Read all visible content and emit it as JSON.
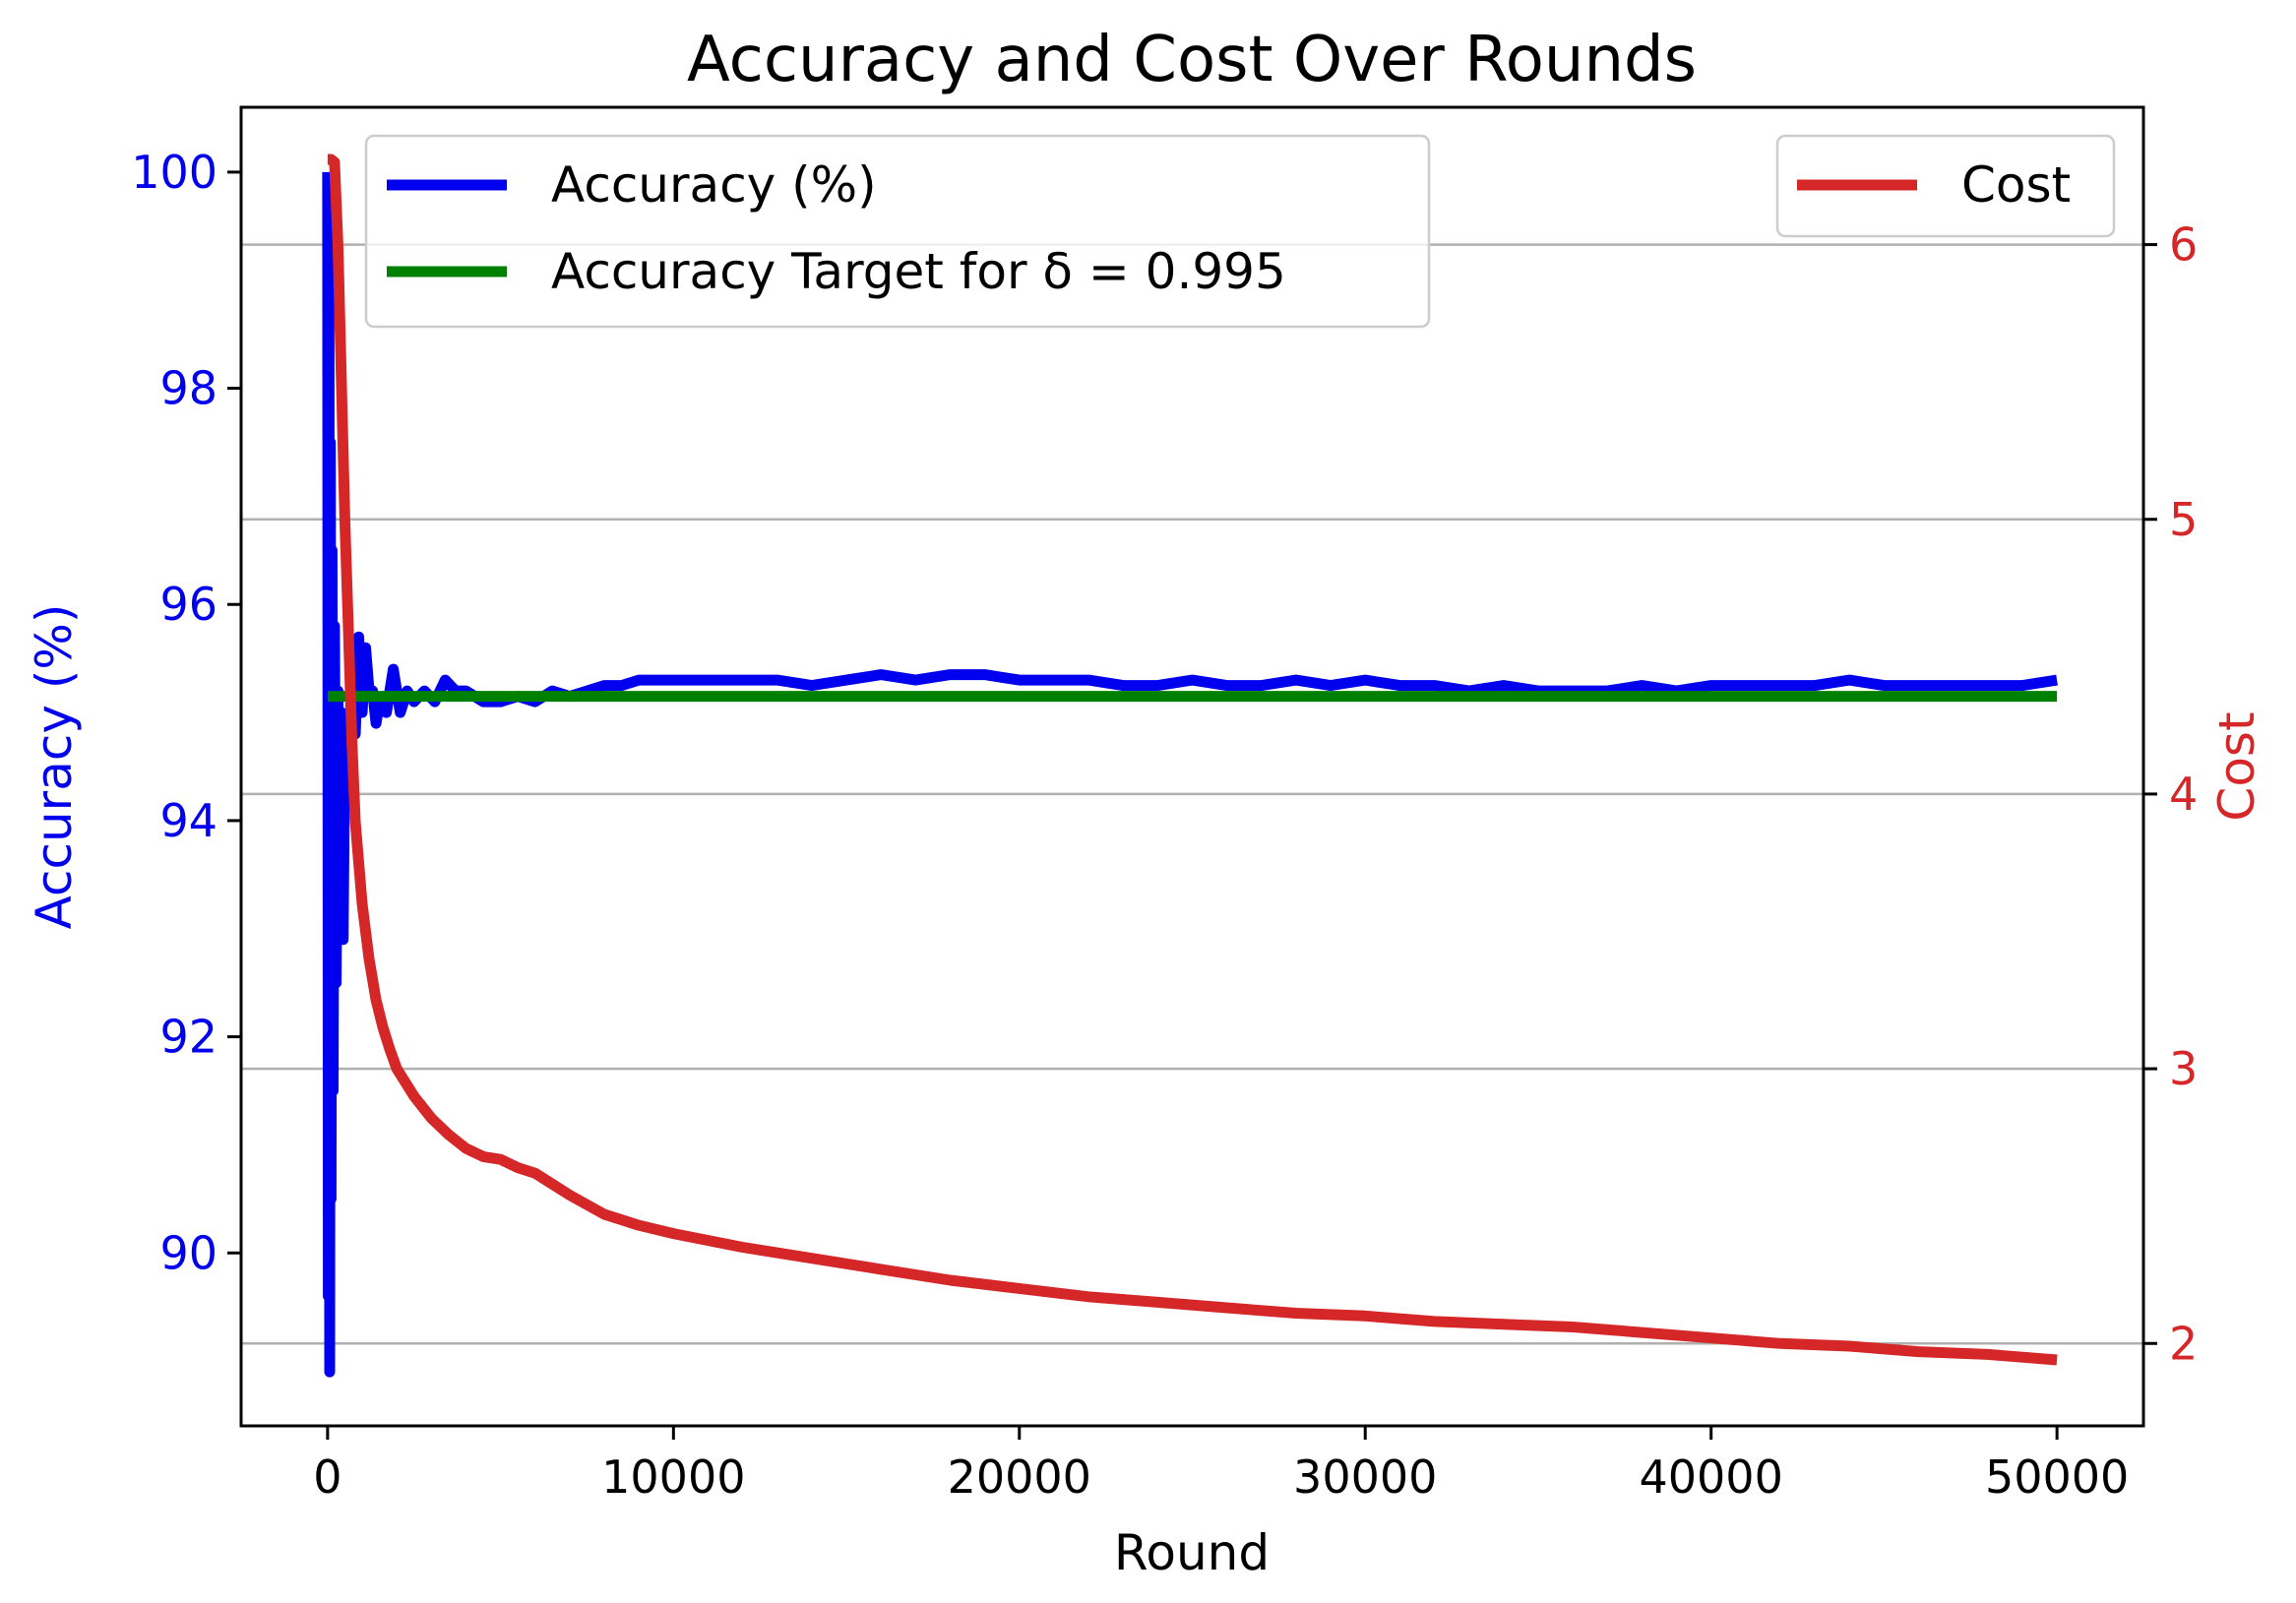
{
  "chart_data": {
    "type": "line",
    "title": "Accuracy and Cost Over Rounds",
    "xlabel": "Round",
    "ylabel_left": "Accuracy (%)",
    "ylabel_right": "Cost",
    "xlim": [
      -2500,
      52500
    ],
    "ylim_left": [
      88.4,
      100.6
    ],
    "ylim_right": [
      1.7,
      6.5
    ],
    "x_ticks": [
      0,
      10000,
      20000,
      30000,
      40000,
      50000
    ],
    "y_ticks_left": [
      90,
      92,
      94,
      96,
      98,
      100
    ],
    "y_ticks_right": [
      2,
      3,
      4,
      5,
      6
    ],
    "grid": "horizontal lines at right-axis ticks",
    "legend_left": "top-left",
    "legend_right": "top-right",
    "series": [
      {
        "name": "Accuracy (%)",
        "axis": "left",
        "color": "#0000ee",
        "x": [
          0,
          20,
          40,
          60,
          80,
          100,
          130,
          160,
          200,
          250,
          300,
          350,
          400,
          450,
          500,
          600,
          700,
          800,
          900,
          1000,
          1100,
          1200,
          1300,
          1400,
          1500,
          1700,
          1900,
          2100,
          2300,
          2500,
          2800,
          3100,
          3400,
          3700,
          4000,
          4500,
          5000,
          5500,
          6000,
          6500,
          7000,
          7500,
          8000,
          8500,
          9000,
          9500,
          10000,
          11000,
          12000,
          13000,
          14000,
          15000,
          16000,
          17000,
          18000,
          19000,
          20000,
          21000,
          22000,
          23000,
          24000,
          25000,
          26000,
          27000,
          28000,
          29000,
          30000,
          31000,
          32000,
          33000,
          34000,
          35000,
          36000,
          37000,
          38000,
          39000,
          40000,
          41000,
          42000,
          43000,
          44000,
          45000,
          46000,
          47000,
          48000,
          49000,
          50000
        ],
        "y": [
          100,
          89.6,
          99.2,
          88.9,
          97.5,
          90.5,
          96.5,
          91.5,
          95.8,
          92.5,
          95.2,
          93.0,
          95.0,
          92.9,
          94.8,
          94.2,
          95.5,
          94.8,
          95.7,
          95.0,
          95.6,
          95.2,
          95.2,
          94.9,
          95.1,
          95.0,
          95.4,
          95.0,
          95.2,
          95.1,
          95.2,
          95.1,
          95.3,
          95.2,
          95.2,
          95.1,
          95.1,
          95.15,
          95.1,
          95.2,
          95.15,
          95.2,
          95.25,
          95.25,
          95.3,
          95.3,
          95.3,
          95.3,
          95.3,
          95.3,
          95.25,
          95.3,
          95.35,
          95.3,
          95.35,
          95.35,
          95.3,
          95.3,
          95.3,
          95.25,
          95.25,
          95.3,
          95.25,
          95.25,
          95.3,
          95.25,
          95.3,
          95.25,
          95.25,
          95.2,
          95.25,
          95.2,
          95.2,
          95.2,
          95.25,
          95.2,
          95.25,
          95.25,
          95.25,
          95.25,
          95.3,
          95.25,
          95.25,
          95.25,
          95.25,
          95.25,
          95.3
        ]
      },
      {
        "name": "Accuracy Target for δ = 0.995",
        "axis": "left",
        "color": "#008000",
        "x": [
          0,
          50000
        ],
        "y": [
          95.15,
          95.15
        ]
      },
      {
        "name": "Cost",
        "axis": "right",
        "color": "#d62728",
        "x": [
          0,
          100,
          200,
          300,
          400,
          500,
          600,
          700,
          800,
          900,
          1000,
          1200,
          1400,
          1600,
          1800,
          2000,
          2500,
          3000,
          3500,
          4000,
          4500,
          5000,
          5500,
          6000,
          7000,
          8000,
          9000,
          10000,
          12000,
          14000,
          16000,
          18000,
          20000,
          22000,
          24000,
          26000,
          28000,
          30000,
          32000,
          34000,
          36000,
          38000,
          40000,
          42000,
          44000,
          46000,
          48000,
          50000
        ],
        "y": [
          6.31,
          6.31,
          6.3,
          6.0,
          5.5,
          5.0,
          4.6,
          4.2,
          3.9,
          3.75,
          3.6,
          3.4,
          3.25,
          3.15,
          3.07,
          3.0,
          2.9,
          2.82,
          2.76,
          2.71,
          2.68,
          2.67,
          2.64,
          2.62,
          2.54,
          2.47,
          2.43,
          2.4,
          2.35,
          2.31,
          2.27,
          2.23,
          2.2,
          2.17,
          2.15,
          2.13,
          2.11,
          2.1,
          2.08,
          2.07,
          2.06,
          2.04,
          2.02,
          2.0,
          1.99,
          1.97,
          1.96,
          1.94
        ]
      }
    ]
  }
}
